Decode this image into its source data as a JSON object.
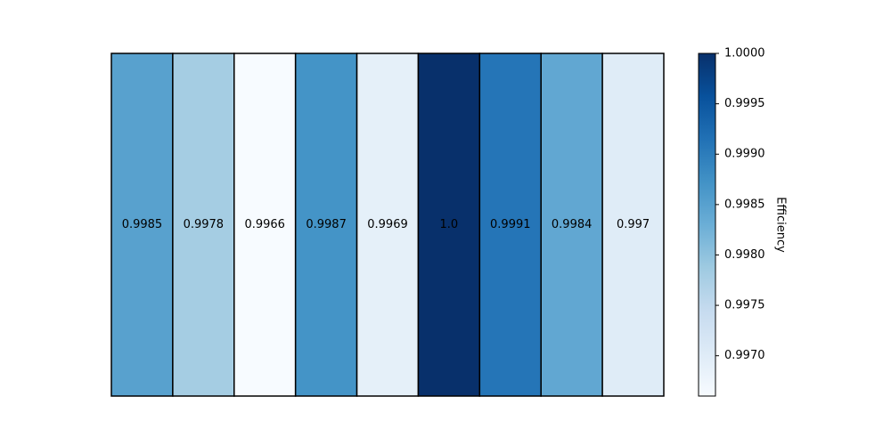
{
  "chart_data": {
    "type": "heatmap",
    "title": "",
    "xlabel": "",
    "ylabel": "",
    "values": [
      0.9985,
      0.9978,
      0.9966,
      0.9987,
      0.9969,
      1.0,
      0.9991,
      0.9984,
      0.997
    ],
    "cell_labels": [
      "0.9985",
      "0.9978",
      "0.9966",
      "0.9987",
      "0.9969",
      "1.0",
      "0.9991",
      "0.9984",
      "0.997"
    ],
    "colormap": "Blues",
    "colormap_stops": [
      "#f7fbff",
      "#deebf7",
      "#c6dbef",
      "#9ecae1",
      "#6baed6",
      "#4292c6",
      "#2171b5",
      "#08519c",
      "#08306b"
    ],
    "colorbar": {
      "label": "Efficiency",
      "range": [
        0.9966,
        1.0
      ],
      "ticks": [
        0.997,
        0.9975,
        0.998,
        0.9985,
        0.999,
        0.9995,
        1.0
      ],
      "tick_labels": [
        "0.9970",
        "0.9975",
        "0.9980",
        "0.9985",
        "0.9990",
        "0.9995",
        "1.0000"
      ]
    },
    "grid": false
  }
}
